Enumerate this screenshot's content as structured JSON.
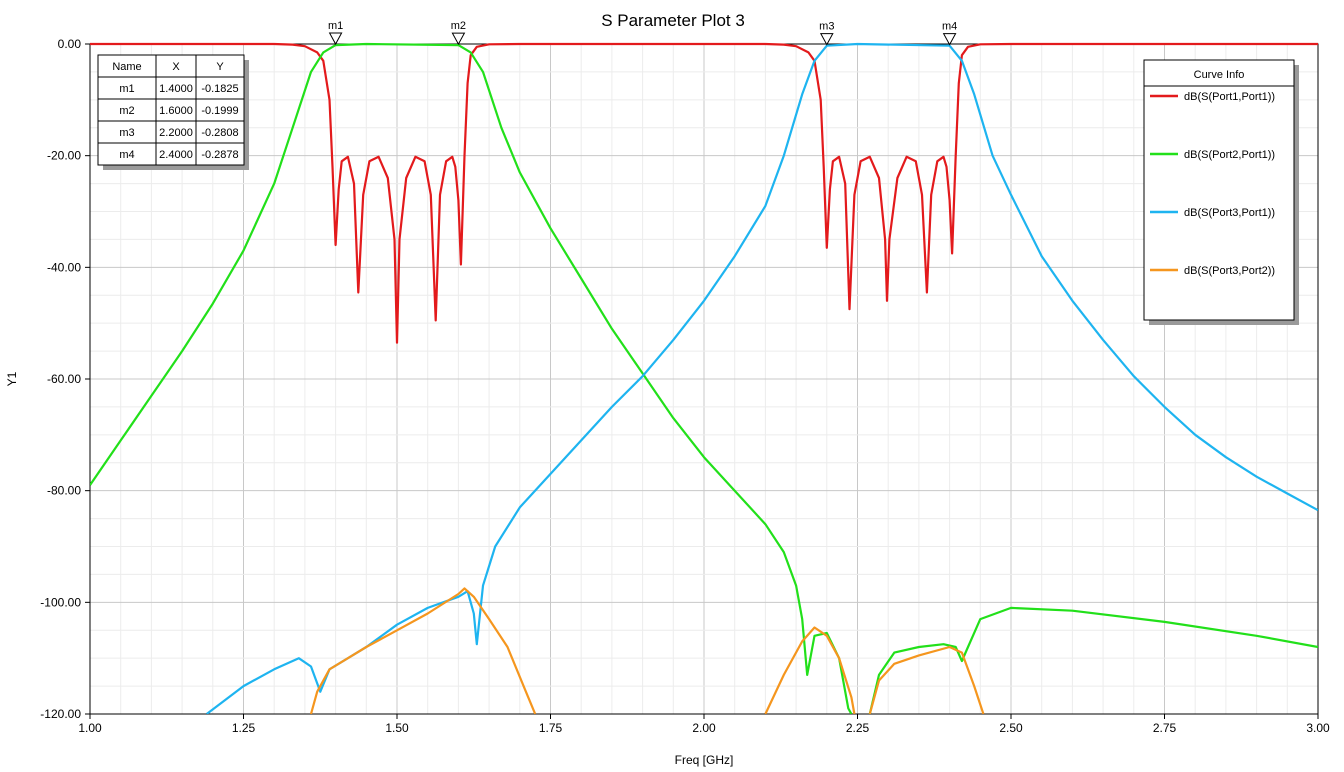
{
  "chart_data": {
    "type": "line",
    "title": "S Parameter Plot 3",
    "xlabel": "Freq [GHz]",
    "ylabel": "Y1",
    "xlim": [
      1.0,
      3.0
    ],
    "ylim": [
      -120,
      0
    ],
    "x_ticks": [
      "1.00",
      "1.25",
      "1.50",
      "1.75",
      "2.00",
      "2.25",
      "2.50",
      "2.75",
      "3.00"
    ],
    "y_ticks": [
      "0.00",
      "-20.00",
      "-40.00",
      "-60.00",
      "-80.00",
      "-100.00",
      "-120.00"
    ],
    "grid": true,
    "legend": {
      "title": "Curve Info",
      "placement": "top-right"
    },
    "series": [
      {
        "name": "dB(S(Port1,Port1))",
        "color": "#e31a1c",
        "points": [
          [
            1.0,
            0
          ],
          [
            1.3,
            0
          ],
          [
            1.33,
            -0.1
          ],
          [
            1.35,
            -0.4
          ],
          [
            1.37,
            -1.5
          ],
          [
            1.38,
            -3
          ],
          [
            1.39,
            -10
          ],
          [
            1.395,
            -22
          ],
          [
            1.4,
            -36
          ],
          [
            1.405,
            -26
          ],
          [
            1.41,
            -21
          ],
          [
            1.42,
            -20.2
          ],
          [
            1.43,
            -25
          ],
          [
            1.437,
            -44.5
          ],
          [
            1.445,
            -27
          ],
          [
            1.455,
            -21
          ],
          [
            1.47,
            -20.2
          ],
          [
            1.485,
            -24
          ],
          [
            1.496,
            -35
          ],
          [
            1.5,
            -53.5
          ],
          [
            1.504,
            -35
          ],
          [
            1.515,
            -24
          ],
          [
            1.53,
            -20.2
          ],
          [
            1.545,
            -21
          ],
          [
            1.555,
            -27
          ],
          [
            1.563,
            -49.5
          ],
          [
            1.57,
            -27
          ],
          [
            1.58,
            -21
          ],
          [
            1.59,
            -20.2
          ],
          [
            1.595,
            -22
          ],
          [
            1.6,
            -28
          ],
          [
            1.604,
            -39.5
          ],
          [
            1.61,
            -20
          ],
          [
            1.615,
            -7
          ],
          [
            1.62,
            -2
          ],
          [
            1.63,
            -0.5
          ],
          [
            1.65,
            -0.05
          ],
          [
            1.7,
            0
          ],
          [
            2.1,
            0
          ],
          [
            2.13,
            -0.1
          ],
          [
            2.15,
            -0.4
          ],
          [
            2.17,
            -1.5
          ],
          [
            2.18,
            -3
          ],
          [
            2.19,
            -10
          ],
          [
            2.195,
            -22
          ],
          [
            2.2,
            -36.5
          ],
          [
            2.205,
            -26
          ],
          [
            2.21,
            -21
          ],
          [
            2.22,
            -20.2
          ],
          [
            2.23,
            -25
          ],
          [
            2.237,
            -47.5
          ],
          [
            2.245,
            -27
          ],
          [
            2.255,
            -21
          ],
          [
            2.27,
            -20.2
          ],
          [
            2.285,
            -24
          ],
          [
            2.295,
            -35
          ],
          [
            2.298,
            -46
          ],
          [
            2.302,
            -35
          ],
          [
            2.315,
            -24
          ],
          [
            2.33,
            -20.2
          ],
          [
            2.345,
            -21
          ],
          [
            2.355,
            -27
          ],
          [
            2.363,
            -44.5
          ],
          [
            2.37,
            -27
          ],
          [
            2.38,
            -21
          ],
          [
            2.39,
            -20.2
          ],
          [
            2.395,
            -22
          ],
          [
            2.4,
            -28
          ],
          [
            2.404,
            -37.5
          ],
          [
            2.41,
            -20
          ],
          [
            2.415,
            -7
          ],
          [
            2.42,
            -2
          ],
          [
            2.43,
            -0.5
          ],
          [
            2.45,
            -0.05
          ],
          [
            2.5,
            0
          ],
          [
            3.0,
            0
          ]
        ]
      },
      {
        "name": "dB(S(Port2,Port1))",
        "color": "#22e01a",
        "points": [
          [
            1.0,
            -79
          ],
          [
            1.05,
            -71
          ],
          [
            1.1,
            -63
          ],
          [
            1.15,
            -55
          ],
          [
            1.2,
            -46.5
          ],
          [
            1.25,
            -37
          ],
          [
            1.3,
            -25
          ],
          [
            1.33,
            -15
          ],
          [
            1.36,
            -5
          ],
          [
            1.38,
            -1.5
          ],
          [
            1.4,
            -0.2
          ],
          [
            1.45,
            0
          ],
          [
            1.6,
            -0.2
          ],
          [
            1.62,
            -1.5
          ],
          [
            1.64,
            -5
          ],
          [
            1.67,
            -15
          ],
          [
            1.7,
            -23
          ],
          [
            1.75,
            -33
          ],
          [
            1.8,
            -42
          ],
          [
            1.85,
            -51
          ],
          [
            1.9,
            -59
          ],
          [
            1.95,
            -67
          ],
          [
            2.0,
            -74
          ],
          [
            2.05,
            -80
          ],
          [
            2.1,
            -86
          ],
          [
            2.13,
            -91
          ],
          [
            2.15,
            -97
          ],
          [
            2.16,
            -103
          ],
          [
            2.168,
            -113
          ],
          [
            2.18,
            -106
          ],
          [
            2.2,
            -105.5
          ],
          [
            2.22,
            -110
          ],
          [
            2.235,
            -119
          ],
          [
            2.24,
            -120
          ]
        ]
      },
      {
        "name": "dB(S(Port2,Port1))",
        "color": "#22e01a",
        "points": [
          [
            2.27,
            -120
          ],
          [
            2.285,
            -113
          ],
          [
            2.31,
            -109
          ],
          [
            2.35,
            -108
          ],
          [
            2.39,
            -107.5
          ],
          [
            2.41,
            -108
          ],
          [
            2.42,
            -110.5
          ],
          [
            2.43,
            -108
          ],
          [
            2.45,
            -103
          ],
          [
            2.5,
            -101
          ],
          [
            2.6,
            -101.5
          ],
          [
            2.75,
            -103.5
          ],
          [
            2.9,
            -106
          ],
          [
            3.0,
            -108
          ]
        ]
      },
      {
        "name": "dB(S(Port3,Port1))",
        "color": "#1eb4f0",
        "points": [
          [
            1.19,
            -120
          ],
          [
            1.25,
            -115
          ],
          [
            1.3,
            -112
          ],
          [
            1.34,
            -110
          ],
          [
            1.36,
            -111.5
          ],
          [
            1.375,
            -116
          ],
          [
            1.39,
            -112
          ],
          [
            1.42,
            -110
          ],
          [
            1.45,
            -108
          ],
          [
            1.5,
            -104
          ],
          [
            1.55,
            -101
          ],
          [
            1.6,
            -99
          ],
          [
            1.615,
            -98
          ],
          [
            1.625,
            -102
          ],
          [
            1.63,
            -107.5
          ],
          [
            1.64,
            -97
          ],
          [
            1.66,
            -90
          ],
          [
            1.7,
            -83
          ],
          [
            1.75,
            -77
          ],
          [
            1.8,
            -71
          ],
          [
            1.85,
            -65
          ],
          [
            1.9,
            -59.5
          ],
          [
            1.95,
            -53
          ],
          [
            2.0,
            -46
          ],
          [
            2.05,
            -38
          ],
          [
            2.1,
            -29
          ],
          [
            2.13,
            -20
          ],
          [
            2.16,
            -9
          ],
          [
            2.18,
            -3
          ],
          [
            2.2,
            -0.3
          ],
          [
            2.25,
            0
          ],
          [
            2.4,
            -0.3
          ],
          [
            2.42,
            -3
          ],
          [
            2.44,
            -9
          ],
          [
            2.47,
            -20
          ],
          [
            2.5,
            -27
          ],
          [
            2.55,
            -38
          ],
          [
            2.6,
            -46
          ],
          [
            2.65,
            -53
          ],
          [
            2.7,
            -59.5
          ],
          [
            2.75,
            -65
          ],
          [
            2.8,
            -70
          ],
          [
            2.85,
            -74
          ],
          [
            2.9,
            -77.5
          ],
          [
            2.95,
            -80.5
          ],
          [
            3.0,
            -83.5
          ]
        ]
      },
      {
        "name": "dB(S(Port3,Port2))",
        "color": "#f5961e",
        "points": [
          [
            1.36,
            -120
          ],
          [
            1.37,
            -116
          ],
          [
            1.39,
            -112
          ],
          [
            1.42,
            -110
          ],
          [
            1.45,
            -108
          ],
          [
            1.5,
            -105
          ],
          [
            1.55,
            -102
          ],
          [
            1.6,
            -98.5
          ],
          [
            1.61,
            -97.5
          ],
          [
            1.625,
            -99
          ],
          [
            1.65,
            -103
          ],
          [
            1.68,
            -108
          ],
          [
            1.71,
            -116
          ],
          [
            1.725,
            -120
          ]
        ]
      },
      {
        "name": "dB(S(Port3,Port2))",
        "color": "#f5961e",
        "points": [
          [
            2.1,
            -120
          ],
          [
            2.13,
            -113
          ],
          [
            2.16,
            -107
          ],
          [
            2.18,
            -104.5
          ],
          [
            2.2,
            -106
          ],
          [
            2.22,
            -110
          ],
          [
            2.24,
            -117
          ],
          [
            2.245,
            -120
          ]
        ]
      },
      {
        "name": "dB(S(Port3,Port2))",
        "color": "#f5961e",
        "points": [
          [
            2.27,
            -120
          ],
          [
            2.285,
            -114
          ],
          [
            2.31,
            -111
          ],
          [
            2.35,
            -109.5
          ],
          [
            2.4,
            -108
          ],
          [
            2.42,
            -109
          ],
          [
            2.44,
            -115
          ],
          [
            2.455,
            -120
          ]
        ]
      }
    ],
    "legend_entries": [
      {
        "label": "dB(S(Port1,Port1))",
        "color": "#e31a1c"
      },
      {
        "label": "dB(S(Port2,Port1))",
        "color": "#22e01a"
      },
      {
        "label": "dB(S(Port3,Port1))",
        "color": "#1eb4f0"
      },
      {
        "label": "dB(S(Port3,Port2))",
        "color": "#f5961e"
      }
    ],
    "markers": [
      {
        "name": "m1",
        "x": 1.4,
        "y": -0.1825
      },
      {
        "name": "m2",
        "x": 1.6,
        "y": -0.1999
      },
      {
        "name": "m3",
        "x": 2.2,
        "y": -0.2808
      },
      {
        "name": "m4",
        "x": 2.4,
        "y": -0.2878
      }
    ],
    "marker_table": {
      "headers": [
        "Name",
        "X",
        "Y"
      ],
      "rows": [
        [
          "m1",
          "1.4000",
          "-0.1825"
        ],
        [
          "m2",
          "1.6000",
          "-0.1999"
        ],
        [
          "m3",
          "2.2000",
          "-0.2808"
        ],
        [
          "m4",
          "2.4000",
          "-0.2878"
        ]
      ]
    }
  }
}
